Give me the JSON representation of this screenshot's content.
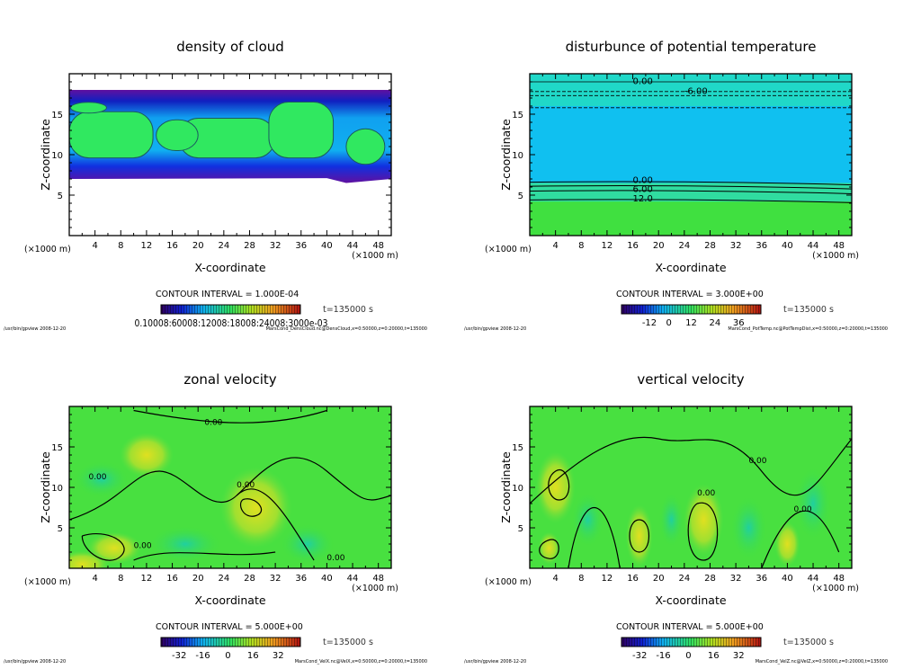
{
  "chart_data": [
    {
      "type": "heatmap",
      "title": "density of cloud",
      "xlabel": "X-coordinate",
      "ylabel": "Z-coordinate",
      "x_unit_left": "(×1000 m)",
      "x_unit_right": "(×1000 m)",
      "xlim": [
        0,
        50
      ],
      "ylim": [
        0,
        20
      ],
      "xticks": [
        "4",
        "8",
        "12",
        "16",
        "20",
        "24",
        "28",
        "32",
        "36",
        "40",
        "44",
        "48"
      ],
      "yticks": [
        "5",
        "10",
        "15"
      ],
      "contour_interval": "CONTOUR INTERVAL = 1.000E-04",
      "time": "t=135000 s",
      "colorbar_labels": [
        "0.1000E-03",
        "0.6000E-04",
        "0.1200E-03",
        "0.1800E-03",
        "0.2400E-03",
        "0.3000e-03"
      ],
      "colorbar_label_text": "0.10008:60008:12008:18008:24008:3000e-03",
      "contour_labels": [],
      "footer_left": "/usr/bin/gpview   2008-12-20",
      "footer_right": "MarsCond_DensCloud.nc@DensCloud,x=0:50000,z=0:20000,t=135000"
    },
    {
      "type": "heatmap",
      "title": "disturbunce of potential temperature",
      "xlabel": "X-coordinate",
      "ylabel": "Z-coordinate",
      "x_unit_left": "(×1000 m)",
      "x_unit_right": "(×1000 m)",
      "xlim": [
        0,
        50
      ],
      "ylim": [
        0,
        20
      ],
      "xticks": [
        "4",
        "8",
        "12",
        "16",
        "20",
        "24",
        "28",
        "32",
        "36",
        "40",
        "44",
        "48"
      ],
      "yticks": [
        "5",
        "10",
        "15"
      ],
      "contour_interval": "CONTOUR INTERVAL = 3.000E+00",
      "time": "t=135000 s",
      "colorbar_labels": [
        "-12",
        "0",
        "12",
        "24",
        "36"
      ],
      "contour_labels": [
        "0.00",
        "-6.00",
        "0.00",
        "6.00",
        "12.0"
      ],
      "footer_left": "/usr/bin/gpview   2008-12-20",
      "footer_right": "MarsCond_PotTemp.nc@PotTempDist,x=0:50000,z=0:20000,t=135000"
    },
    {
      "type": "heatmap",
      "title": "zonal velocity",
      "xlabel": "X-coordinate",
      "ylabel": "Z-coordinate",
      "x_unit_left": "(×1000 m)",
      "x_unit_right": "(×1000 m)",
      "xlim": [
        0,
        50
      ],
      "ylim": [
        0,
        20
      ],
      "xticks": [
        "4",
        "8",
        "12",
        "16",
        "20",
        "24",
        "28",
        "32",
        "36",
        "40",
        "44",
        "48"
      ],
      "yticks": [
        "5",
        "10",
        "15"
      ],
      "contour_interval": "CONTOUR INTERVAL = 5.000E+00",
      "time": "t=135000 s",
      "colorbar_labels": [
        "-32",
        "-16",
        "0",
        "16",
        "32"
      ],
      "contour_labels": [
        "0.00",
        "0.00",
        "0.00",
        "0.00",
        "0.00"
      ],
      "footer_left": "/usr/bin/gpview   2008-12-20",
      "footer_right": "MarsCond_VelX.nc@VelX,x=0:50000,z=0:20000,t=135000"
    },
    {
      "type": "heatmap",
      "title": "vertical velocity",
      "xlabel": "X-coordinate",
      "ylabel": "Z-coordinate",
      "x_unit_left": "(×1000 m)",
      "x_unit_right": "(×1000 m)",
      "xlim": [
        0,
        50
      ],
      "ylim": [
        0,
        20
      ],
      "xticks": [
        "4",
        "8",
        "12",
        "16",
        "20",
        "24",
        "28",
        "32",
        "36",
        "40",
        "44",
        "48"
      ],
      "yticks": [
        "5",
        "10",
        "15"
      ],
      "contour_interval": "CONTOUR INTERVAL = 5.000E+00",
      "time": "t=135000 s",
      "colorbar_labels": [
        "-32",
        "-16",
        "0",
        "16",
        "32"
      ],
      "contour_labels": [
        "0.00",
        "0.00",
        "0.00"
      ],
      "footer_left": "/usr/bin/gpview   2008-12-20",
      "footer_right": "MarsCond_VelZ.nc@VelZ,x=0:50000,z=0:20000,t=135000"
    }
  ],
  "colors": {
    "green": "#40e040",
    "cyan": "#10c8f0",
    "blue": "#1020e0",
    "purple": "#6010a0"
  }
}
